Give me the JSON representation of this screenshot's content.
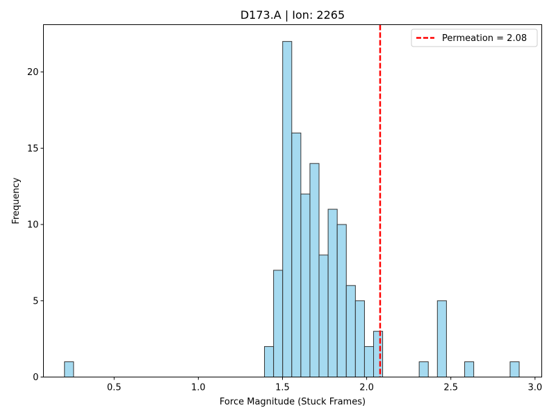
{
  "chart_data": {
    "type": "histogram",
    "title": "D173.A | Ion: 2265",
    "xlabel": "Force Magnitude (Stuck Frames)",
    "ylabel": "Frequency",
    "xlim": [
      0.08,
      3.04
    ],
    "ylim": [
      0,
      23.1
    ],
    "xticks": [
      0.5,
      1.0,
      1.5,
      2.0,
      2.5,
      3.0
    ],
    "yticks": [
      0,
      5,
      10,
      15,
      20
    ],
    "bar_color": "#87CEEB",
    "bar_edge_color": "#333333",
    "bins": [
      {
        "x0": 0.205,
        "x1": 0.259,
        "count": 1
      },
      {
        "x0": 1.393,
        "x1": 1.447,
        "count": 2
      },
      {
        "x0": 1.447,
        "x1": 1.501,
        "count": 7
      },
      {
        "x0": 1.501,
        "x1": 1.555,
        "count": 22
      },
      {
        "x0": 1.555,
        "x1": 1.609,
        "count": 16
      },
      {
        "x0": 1.609,
        "x1": 1.663,
        "count": 12
      },
      {
        "x0": 1.663,
        "x1": 1.717,
        "count": 14
      },
      {
        "x0": 1.717,
        "x1": 1.771,
        "count": 8
      },
      {
        "x0": 1.771,
        "x1": 1.825,
        "count": 11
      },
      {
        "x0": 1.825,
        "x1": 1.879,
        "count": 10
      },
      {
        "x0": 1.879,
        "x1": 1.933,
        "count": 6
      },
      {
        "x0": 1.933,
        "x1": 1.987,
        "count": 5
      },
      {
        "x0": 1.987,
        "x1": 2.041,
        "count": 2
      },
      {
        "x0": 2.041,
        "x1": 2.095,
        "count": 3
      },
      {
        "x0": 2.312,
        "x1": 2.366,
        "count": 1
      },
      {
        "x0": 2.42,
        "x1": 2.474,
        "count": 5
      },
      {
        "x0": 2.582,
        "x1": 2.636,
        "count": 1
      },
      {
        "x0": 2.852,
        "x1": 2.906,
        "count": 1
      }
    ],
    "reference_line": {
      "x": 2.08,
      "label": "Permeation = 2.08",
      "color": "#FF0000",
      "style": "dashed"
    },
    "legend_position": "top-right",
    "grid": false
  }
}
